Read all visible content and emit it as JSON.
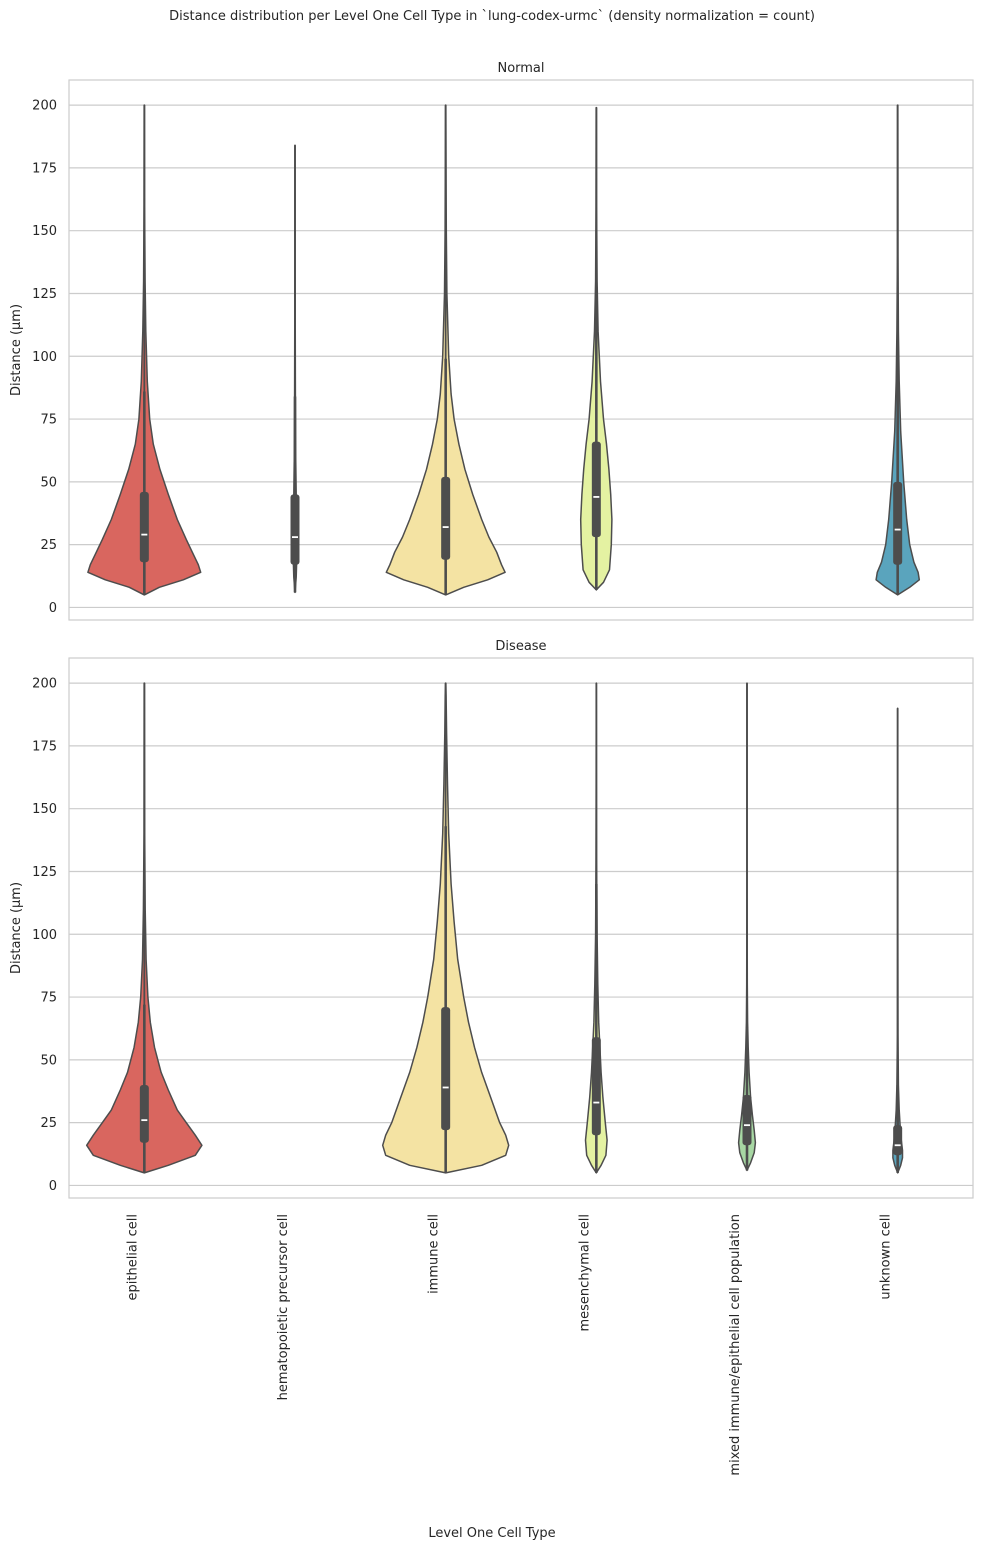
{
  "chart_data": {
    "type": "violin",
    "title": "Distance distribution per Level One Cell Type in `lung-codex-urmc` (density normalization = count)",
    "xlabel": "Level One Cell Type",
    "ylabel": "Distance (µm)",
    "ylim": [
      -5,
      210
    ],
    "yticks": [
      0,
      25,
      50,
      75,
      100,
      125,
      150,
      175,
      200
    ],
    "grid": true,
    "categories": [
      "epithelial cell",
      "hematopoietic precursor cell",
      "immune cell",
      "mesenchymal cell",
      "mixed immune/epithelial cell population",
      "unknown cell"
    ],
    "colors": [
      "#d9665f",
      "#ee995b",
      "#f4e3a3",
      "#e4f2a2",
      "#a7d7a3",
      "#5aa4bd"
    ],
    "panels": [
      {
        "title": "Normal",
        "violins": [
          {
            "category": "epithelial cell",
            "min": 5,
            "max": 200,
            "q1": 18,
            "median": 29,
            "q3": 46,
            "whisker_low": 5,
            "whisker_high": 86,
            "profile": [
              [
                5,
                0.0
              ],
              [
                8,
                0.25
              ],
              [
                11,
                0.65
              ],
              [
                14,
                0.94
              ],
              [
                17,
                0.9
              ],
              [
                22,
                0.8
              ],
              [
                27,
                0.7
              ],
              [
                35,
                0.55
              ],
              [
                45,
                0.4
              ],
              [
                55,
                0.26
              ],
              [
                65,
                0.15
              ],
              [
                75,
                0.09
              ],
              [
                90,
                0.05
              ],
              [
                110,
                0.025
              ],
              [
                130,
                0.012
              ],
              [
                160,
                0.005
              ],
              [
                200,
                0.002
              ]
            ]
          },
          {
            "category": "hematopoietic precursor cell",
            "min": 6,
            "max": 184,
            "q1": 17,
            "median": 28,
            "q3": 45,
            "whisker_low": 6,
            "whisker_high": 84,
            "profile": [
              [
                6,
                0.0
              ],
              [
                12,
                0.02
              ],
              [
                20,
                0.03
              ],
              [
                30,
                0.028
              ],
              [
                45,
                0.02
              ],
              [
                60,
                0.012
              ],
              [
                84,
                0.006
              ],
              [
                120,
                0.003
              ],
              [
                184,
                0.001
              ]
            ]
          },
          {
            "category": "immune cell",
            "min": 5,
            "max": 200,
            "q1": 19,
            "median": 32,
            "q3": 52,
            "whisker_low": 5,
            "whisker_high": 99,
            "profile": [
              [
                5,
                0.0
              ],
              [
                8,
                0.3
              ],
              [
                11,
                0.7
              ],
              [
                14,
                0.99
              ],
              [
                17,
                0.93
              ],
              [
                22,
                0.85
              ],
              [
                28,
                0.72
              ],
              [
                35,
                0.6
              ],
              [
                45,
                0.45
              ],
              [
                55,
                0.32
              ],
              [
                65,
                0.22
              ],
              [
                75,
                0.14
              ],
              [
                85,
                0.09
              ],
              [
                100,
                0.05
              ],
              [
                125,
                0.02
              ],
              [
                150,
                0.01
              ],
              [
                200,
                0.003
              ]
            ]
          },
          {
            "category": "mesenchymal cell",
            "min": 7,
            "max": 199,
            "q1": 28,
            "median": 44,
            "q3": 66,
            "whisker_low": 7,
            "whisker_high": 122,
            "profile": [
              [
                7,
                0.0
              ],
              [
                10,
                0.12
              ],
              [
                15,
                0.22
              ],
              [
                25,
                0.25
              ],
              [
                35,
                0.26
              ],
              [
                45,
                0.24
              ],
              [
                55,
                0.21
              ],
              [
                65,
                0.17
              ],
              [
                75,
                0.12
              ],
              [
                90,
                0.07
              ],
              [
                110,
                0.03
              ],
              [
                130,
                0.012
              ],
              [
                160,
                0.005
              ],
              [
                199,
                0.002
              ]
            ]
          },
          {
            "category": "unknown cell",
            "min": 5,
            "max": 200,
            "q1": 17,
            "median": 31,
            "q3": 50,
            "whisker_low": 5,
            "whisker_high": 99,
            "profile": [
              [
                5,
                0.0
              ],
              [
                8,
                0.2
              ],
              [
                11,
                0.36
              ],
              [
                14,
                0.34
              ],
              [
                18,
                0.27
              ],
              [
                25,
                0.2
              ],
              [
                35,
                0.15
              ],
              [
                50,
                0.1
              ],
              [
                70,
                0.05
              ],
              [
                90,
                0.025
              ],
              [
                110,
                0.012
              ],
              [
                140,
                0.005
              ],
              [
                200,
                0.002
              ]
            ]
          }
        ]
      },
      {
        "title": "Disease",
        "violins": [
          {
            "category": "epithelial cell",
            "min": 5,
            "max": 200,
            "q1": 17,
            "median": 26,
            "q3": 40,
            "whisker_low": 5,
            "whisker_high": 72,
            "profile": [
              [
                5,
                0.0
              ],
              [
                8,
                0.4
              ],
              [
                12,
                0.85
              ],
              [
                16,
                0.96
              ],
              [
                20,
                0.85
              ],
              [
                25,
                0.7
              ],
              [
                30,
                0.55
              ],
              [
                38,
                0.4
              ],
              [
                45,
                0.28
              ],
              [
                55,
                0.17
              ],
              [
                65,
                0.1
              ],
              [
                75,
                0.06
              ],
              [
                90,
                0.03
              ],
              [
                110,
                0.015
              ],
              [
                140,
                0.006
              ],
              [
                200,
                0.002
              ]
            ]
          },
          {
            "category": "immune cell",
            "min": 5,
            "max": 200,
            "q1": 22,
            "median": 39,
            "q3": 71,
            "whisker_low": 5,
            "whisker_high": 143,
            "profile": [
              [
                5,
                0.0
              ],
              [
                8,
                0.6
              ],
              [
                12,
                1.0
              ],
              [
                16,
                1.05
              ],
              [
                20,
                1.0
              ],
              [
                25,
                0.9
              ],
              [
                35,
                0.75
              ],
              [
                45,
                0.6
              ],
              [
                55,
                0.48
              ],
              [
                65,
                0.38
              ],
              [
                75,
                0.3
              ],
              [
                90,
                0.2
              ],
              [
                105,
                0.14
              ],
              [
                120,
                0.09
              ],
              [
                140,
                0.05
              ],
              [
                160,
                0.03
              ],
              [
                180,
                0.015
              ],
              [
                195,
                0.008
              ],
              [
                200,
                0.002
              ]
            ]
          },
          {
            "category": "mesenchymal cell",
            "min": 5,
            "max": 200,
            "q1": 20,
            "median": 33,
            "q3": 59,
            "whisker_low": 5,
            "whisker_high": 120,
            "profile": [
              [
                5,
                0.0
              ],
              [
                8,
                0.08
              ],
              [
                12,
                0.16
              ],
              [
                18,
                0.18
              ],
              [
                25,
                0.15
              ],
              [
                35,
                0.11
              ],
              [
                45,
                0.08
              ],
              [
                55,
                0.06
              ],
              [
                65,
                0.04
              ],
              [
                80,
                0.025
              ],
              [
                100,
                0.012
              ],
              [
                130,
                0.005
              ],
              [
                160,
                0.003
              ],
              [
                200,
                0.001
              ]
            ]
          },
          {
            "category": "mixed immune/epithelial cell population",
            "min": 6,
            "max": 200,
            "q1": 16,
            "median": 24,
            "q3": 36,
            "whisker_low": 6,
            "whisker_high": 63,
            "profile": [
              [
                6,
                0.0
              ],
              [
                9,
                0.06
              ],
              [
                13,
                0.12
              ],
              [
                17,
                0.14
              ],
              [
                22,
                0.12
              ],
              [
                28,
                0.09
              ],
              [
                35,
                0.06
              ],
              [
                45,
                0.035
              ],
              [
                55,
                0.02
              ],
              [
                65,
                0.01
              ],
              [
                80,
                0.005
              ],
              [
                120,
                0.002
              ],
              [
                200,
                0.001
              ]
            ]
          },
          {
            "category": "unknown cell",
            "min": 5,
            "max": 190,
            "q1": 12,
            "median": 16,
            "q3": 24,
            "whisker_low": 5,
            "whisker_high": 40,
            "profile": [
              [
                5,
                0.0
              ],
              [
                8,
                0.05
              ],
              [
                11,
                0.08
              ],
              [
                14,
                0.08
              ],
              [
                18,
                0.06
              ],
              [
                24,
                0.04
              ],
              [
                30,
                0.025
              ],
              [
                40,
                0.012
              ],
              [
                60,
                0.005
              ],
              [
                100,
                0.002
              ],
              [
                190,
                0.001
              ]
            ]
          }
        ]
      }
    ]
  }
}
